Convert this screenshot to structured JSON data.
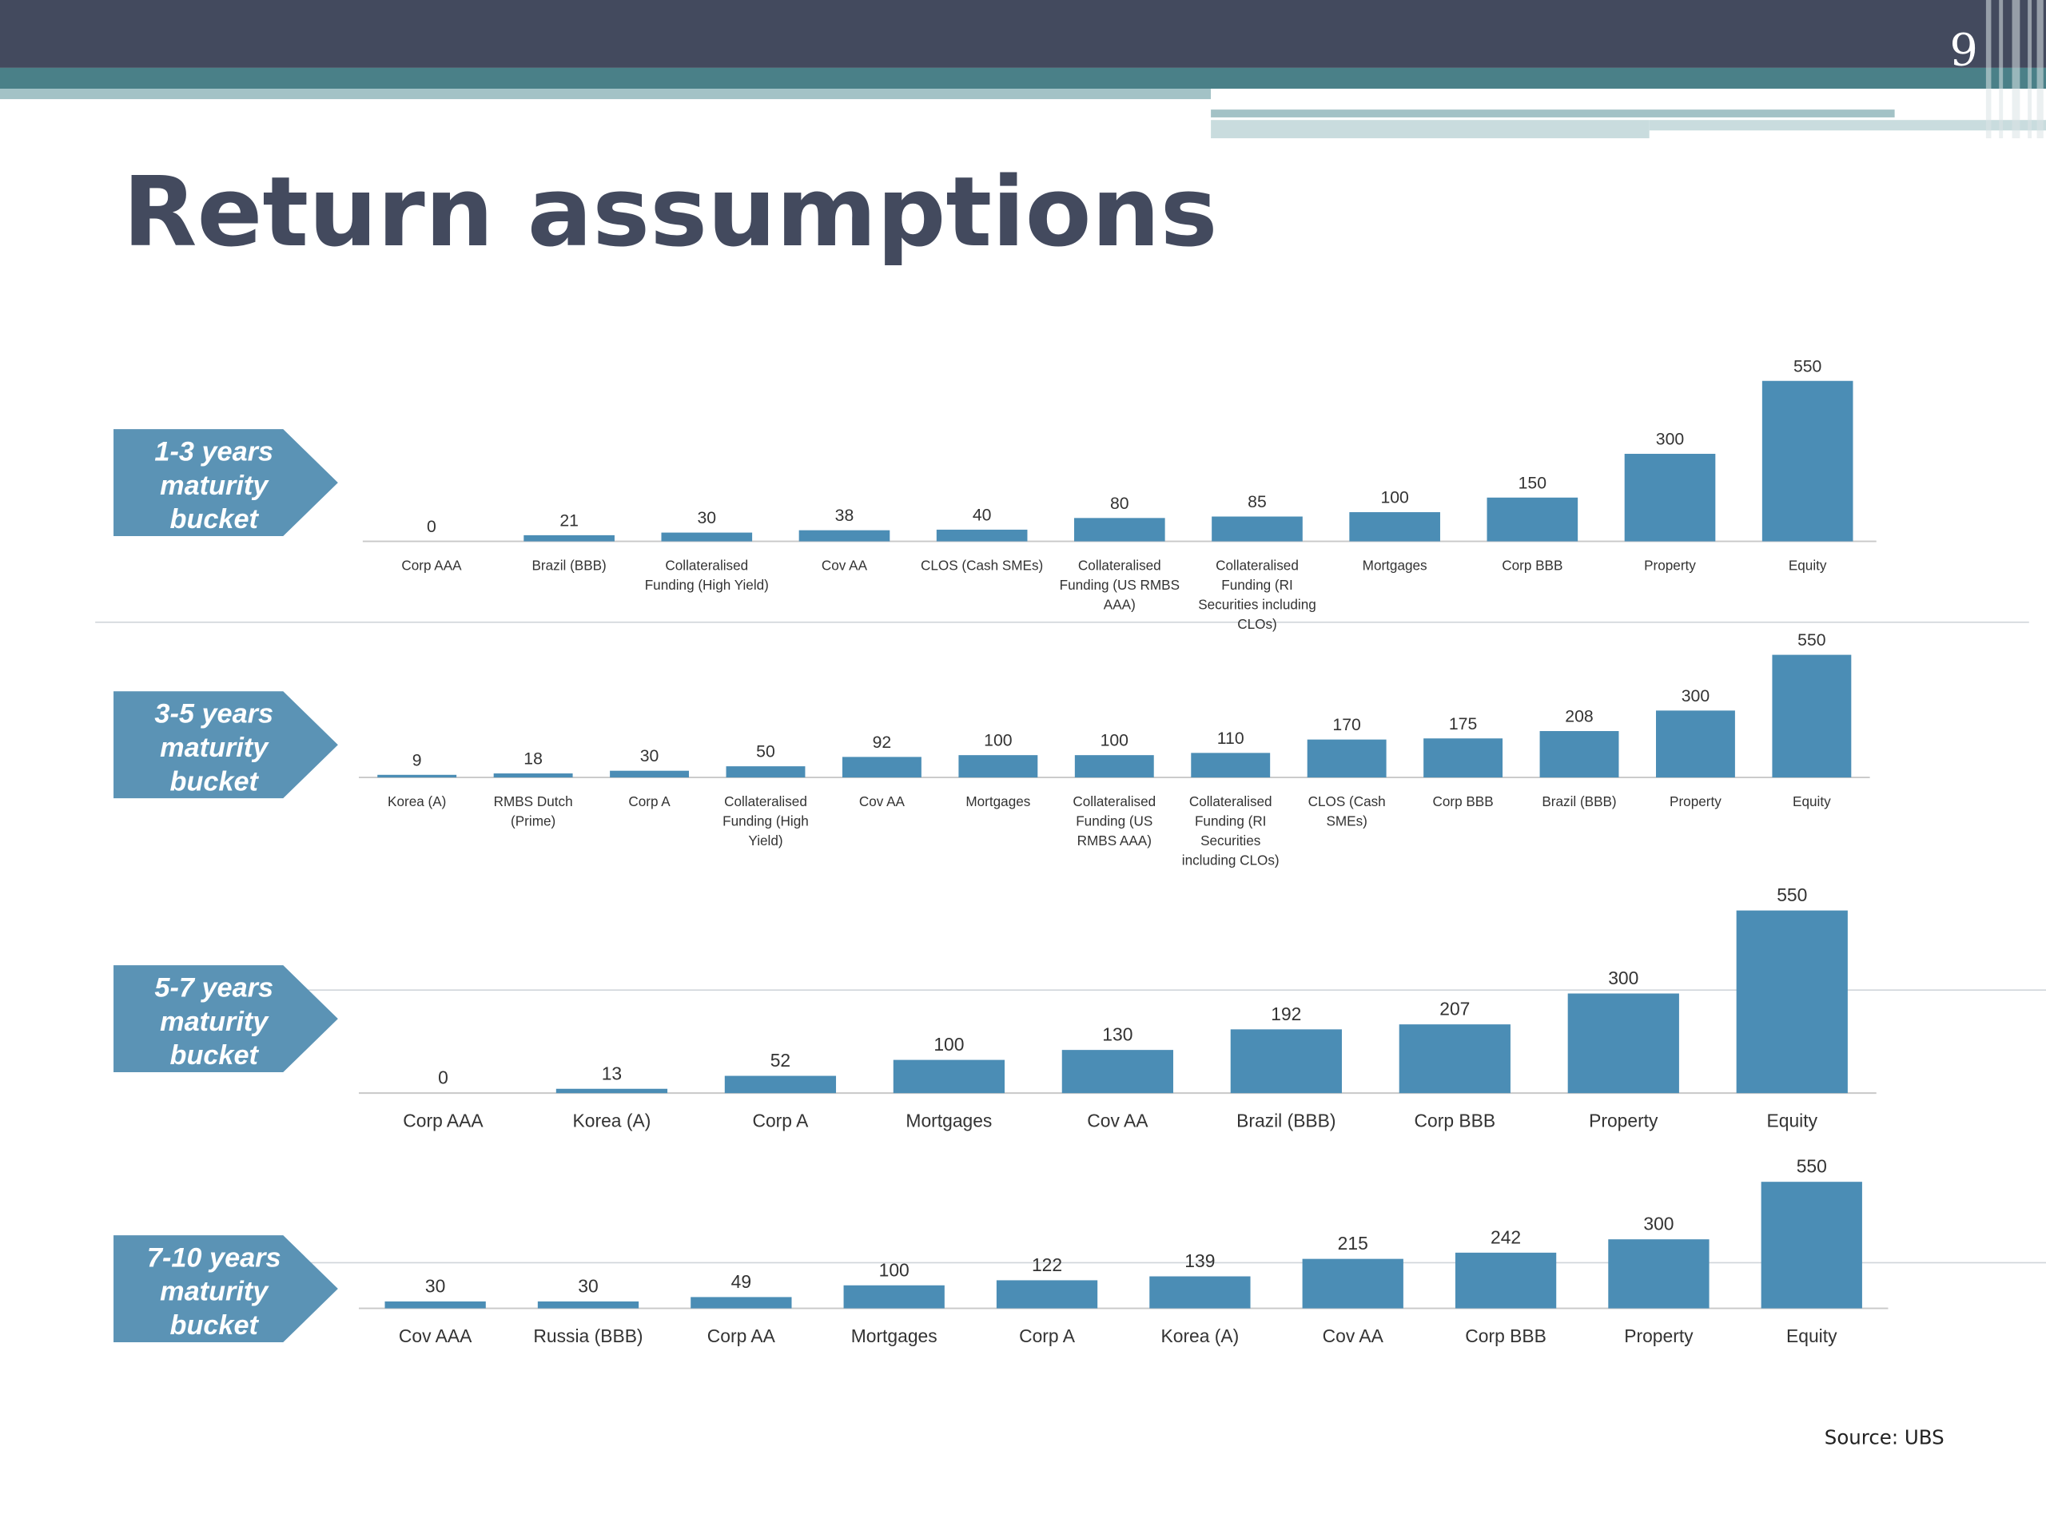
{
  "page_number": "9",
  "title": "Return assumptions",
  "source": "Source: UBS",
  "colors": {
    "header_dark": "#434a5e",
    "header_teal": "#4a8088",
    "header_light": "#a3c2c6",
    "bar": "#4b8db5",
    "arrow": "#5b93b5",
    "title": "#434a5e"
  },
  "chart_data": [
    {
      "type": "bar",
      "bucket_label": [
        "1-3 years",
        "maturity",
        "bucket"
      ],
      "categories": [
        "Corp AAA",
        "Brazil (BBB)",
        "Collateralised Funding (High Yield)",
        "Cov AA",
        "CLOS (Cash SMEs)",
        "Collateralised Funding (US RMBS AAA)",
        "Collateralised Funding (RI Securities including CLOs)",
        "Mortgages",
        "Corp BBB",
        "Property",
        "Equity"
      ],
      "values": [
        0,
        21,
        30,
        38,
        40,
        80,
        85,
        100,
        150,
        300,
        550
      ],
      "title": "",
      "xlabel": "",
      "ylabel": "",
      "ylim": [
        0,
        550
      ],
      "grid": false,
      "legend": "none"
    },
    {
      "type": "bar",
      "bucket_label": [
        "3-5 years",
        "maturity",
        "bucket"
      ],
      "categories": [
        "Korea (A)",
        "RMBS Dutch (Prime)",
        "Corp A",
        "Collateralised Funding (High Yield)",
        "Cov AA",
        "Mortgages",
        "Collateralised Funding (US RMBS AAA)",
        "Collateralised Funding (RI Securities including CLOs)",
        "CLOS (Cash SMEs)",
        "Corp BBB",
        "Brazil (BBB)",
        "Property",
        "Equity"
      ],
      "values": [
        9,
        18,
        30,
        50,
        92,
        100,
        100,
        110,
        170,
        175,
        208,
        300,
        550
      ],
      "title": "",
      "xlabel": "",
      "ylabel": "",
      "ylim": [
        0,
        550
      ],
      "grid": false,
      "legend": "none"
    },
    {
      "type": "bar",
      "bucket_label": [
        "5-7 years",
        "maturity",
        "bucket"
      ],
      "categories": [
        "Corp AAA",
        "Korea (A)",
        "Corp A",
        "Mortgages",
        "Cov AA",
        "Brazil (BBB)",
        "Corp BBB",
        "Property",
        "Equity"
      ],
      "values": [
        0,
        13,
        52,
        100,
        130,
        192,
        207,
        300,
        550
      ],
      "title": "",
      "xlabel": "",
      "ylabel": "",
      "ylim": [
        0,
        550
      ],
      "grid": false,
      "legend": "none"
    },
    {
      "type": "bar",
      "bucket_label": [
        "7-10 years",
        "maturity",
        "bucket"
      ],
      "categories": [
        "Cov AAA",
        "Russia (BBB)",
        "Corp AA",
        "Mortgages",
        "Corp A",
        "Korea (A)",
        "Cov AA",
        "Corp BBB",
        "Property",
        "Equity"
      ],
      "values": [
        30,
        30,
        49,
        100,
        122,
        139,
        215,
        242,
        300,
        550
      ],
      "title": "",
      "xlabel": "",
      "ylabel": "",
      "ylim": [
        0,
        550
      ],
      "grid": false,
      "legend": "none"
    }
  ]
}
